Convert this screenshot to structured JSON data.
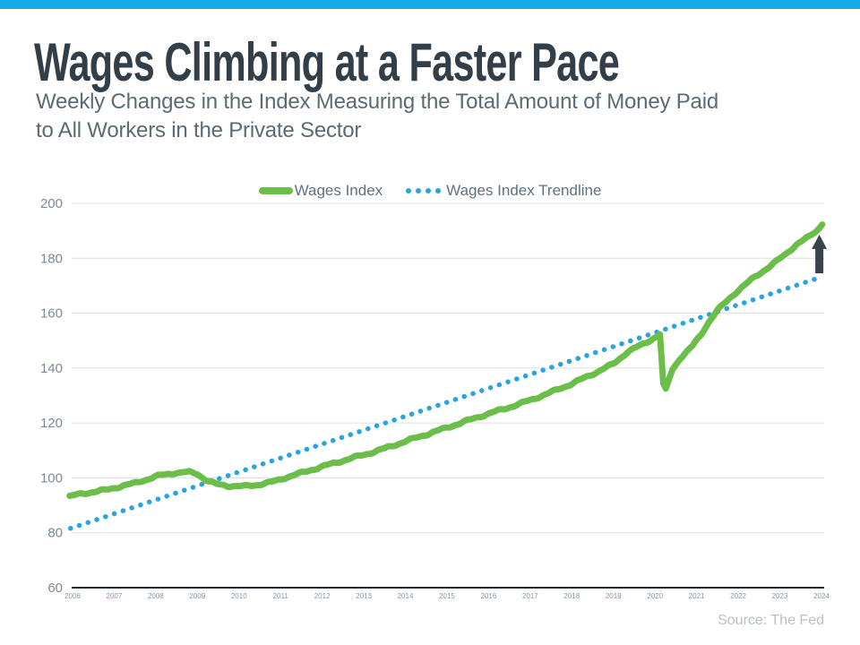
{
  "page": {
    "accent_bar_color": "#18a9ea",
    "background_color": "#ffffff"
  },
  "header": {
    "title": "Wages Climbing at a Faster Pace",
    "subtitle_line1": "Weekly Changes in the Index Measuring the Total Amount of Money Paid",
    "subtitle_line2": "to All Workers in the Private Sector"
  },
  "legend": {
    "series1_label": "Wages Index",
    "series2_label": "Wages Index Trendline"
  },
  "source": {
    "label": "Source: The Fed"
  },
  "chart_data": {
    "type": "line",
    "title": "Wages Climbing at a Faster Pace",
    "xlabel": "",
    "ylabel": "",
    "xlim": [
      2006,
      2024
    ],
    "ylim": [
      60,
      200
    ],
    "grid": true,
    "legend_position": "top-center",
    "x_ticks": [
      2006,
      2007,
      2008,
      2009,
      2010,
      2011,
      2012,
      2013,
      2014,
      2015,
      2016,
      2017,
      2018,
      2019,
      2020,
      2021,
      2022,
      2023,
      2024
    ],
    "y_ticks": [
      200,
      180,
      160,
      140,
      120,
      100,
      80,
      60
    ],
    "axis_colors": {
      "gridline": "#dcdfe2",
      "baseline": "#1f2a33",
      "y_tick_label": "#7d8a96",
      "x_tick_label": "#8b95a0"
    },
    "series": [
      {
        "name": "Wages Index",
        "color": "#6cbe4b",
        "style": "solid",
        "texture": {
          "amplitude": 0.3,
          "freq1": 9.3,
          "freq2": 23.7,
          "amp2_ratio": 0.5,
          "max_slope": 30
        },
        "points": [
          [
            2005.93,
            93.2
          ],
          [
            2006.2,
            94.2
          ],
          [
            2006.5,
            94.9
          ],
          [
            2006.8,
            95.6
          ],
          [
            2007.1,
            96.7
          ],
          [
            2007.45,
            97.9
          ],
          [
            2007.8,
            99.5
          ],
          [
            2008.1,
            100.9
          ],
          [
            2008.45,
            101.8
          ],
          [
            2008.8,
            102.1
          ],
          [
            2009.0,
            101.5
          ],
          [
            2009.2,
            99.3
          ],
          [
            2009.45,
            97.7
          ],
          [
            2009.75,
            97.1
          ],
          [
            2010.1,
            96.9
          ],
          [
            2010.45,
            97.5
          ],
          [
            2010.8,
            98.5
          ],
          [
            2011.1,
            100.0
          ],
          [
            2011.5,
            101.8
          ],
          [
            2012.0,
            104.1
          ],
          [
            2012.5,
            106.3
          ],
          [
            2013.0,
            108.4
          ],
          [
            2013.5,
            110.7
          ],
          [
            2014.0,
            113.3
          ],
          [
            2014.5,
            115.8
          ],
          [
            2015.0,
            118.3
          ],
          [
            2015.5,
            120.9
          ],
          [
            2016.0,
            123.4
          ],
          [
            2016.5,
            125.7
          ],
          [
            2017.0,
            128.3
          ],
          [
            2017.5,
            131.2
          ],
          [
            2018.0,
            134.3
          ],
          [
            2018.5,
            137.8
          ],
          [
            2019.0,
            141.5
          ],
          [
            2019.35,
            146.0
          ],
          [
            2019.7,
            148.6
          ],
          [
            2020.0,
            151.2
          ],
          [
            2020.12,
            152.3
          ],
          [
            2020.2,
            134.5
          ],
          [
            2020.26,
            132.5
          ],
          [
            2020.42,
            139.5
          ],
          [
            2020.6,
            143.5
          ],
          [
            2020.9,
            148.0
          ],
          [
            2021.1,
            152.0
          ],
          [
            2021.3,
            157.0
          ],
          [
            2021.5,
            161.0
          ],
          [
            2021.8,
            165.5
          ],
          [
            2022.0,
            168.3
          ],
          [
            2022.4,
            173.2
          ],
          [
            2022.8,
            177.5
          ],
          [
            2023.1,
            181.0
          ],
          [
            2023.4,
            185.0
          ],
          [
            2023.7,
            187.8
          ],
          [
            2023.9,
            190.3
          ],
          [
            2024.02,
            192.3
          ]
        ]
      },
      {
        "name": "Wages Index Trendline",
        "color": "#29a4e0",
        "style": "dotted",
        "points": [
          [
            2005.95,
            81.6
          ],
          [
            2024.0,
            173.2
          ]
        ]
      }
    ],
    "annotations": [
      {
        "type": "up-arrow",
        "x": 2023.95,
        "from_value": 174.5,
        "to_value": 188.6,
        "color": "#3a434c"
      }
    ]
  }
}
